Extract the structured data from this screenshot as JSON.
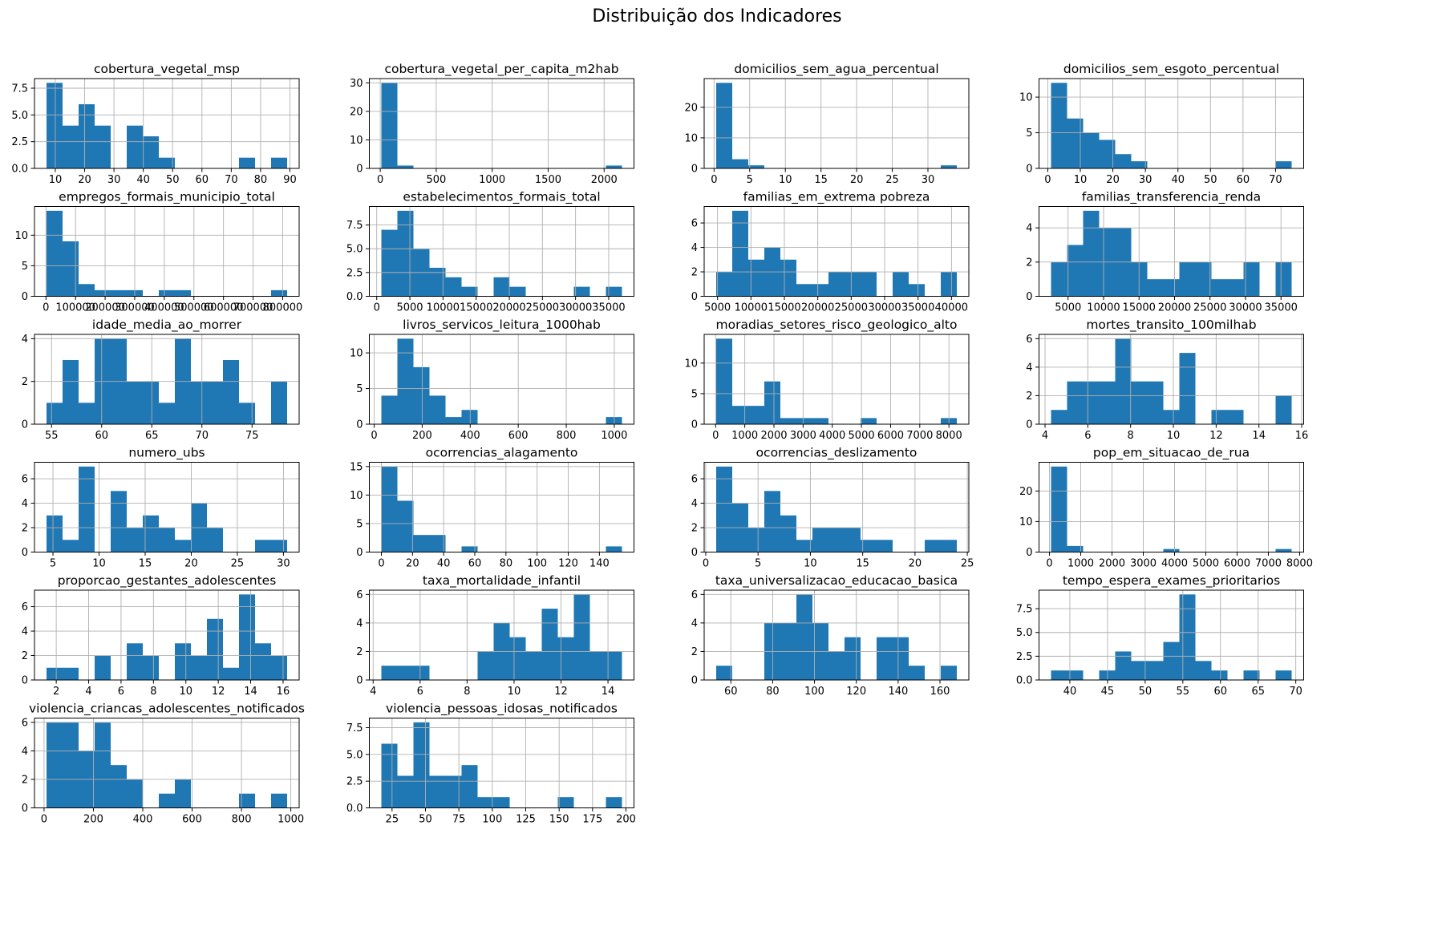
{
  "suptitle": "Distribuição dos Indicadores",
  "colors": {
    "bar": "#1f77b4",
    "grid": "#b0b0b0",
    "spine": "#000000",
    "text": "#000000"
  },
  "chart_data": [
    {
      "type": "bar",
      "title": "cobertura_vegetal_msp",
      "bin_start": 7,
      "bin_width": 5.47,
      "counts": [
        8,
        4,
        6,
        4,
        0,
        4,
        3,
        1,
        0,
        0,
        0,
        0,
        1,
        0,
        1
      ],
      "xticks": [
        10,
        20,
        30,
        40,
        50,
        60,
        70,
        80,
        90
      ],
      "xtick_labels": [
        "10",
        "20",
        "30",
        "40",
        "50",
        "60",
        "70",
        "80",
        "90"
      ],
      "yticks": [
        0,
        2.5,
        5,
        7.5
      ],
      "ytick_labels": [
        "0.0",
        "2.5",
        "5.0",
        "7.5"
      ],
      "ylim": 8.4
    },
    {
      "type": "bar",
      "title": "cobertura_vegetal_per_capita_m2hab",
      "bin_start": 10,
      "bin_width": 143.3,
      "counts": [
        30,
        1,
        0,
        0,
        0,
        0,
        0,
        0,
        0,
        0,
        0,
        0,
        0,
        0,
        1
      ],
      "xticks": [
        0,
        500,
        1000,
        1500,
        2000
      ],
      "xtick_labels": [
        "0",
        "500",
        "1000",
        "1500",
        "2000"
      ],
      "yticks": [
        0,
        10,
        20,
        30
      ],
      "ytick_labels": [
        "0",
        "10",
        "20",
        "30"
      ],
      "ylim": 31.5
    },
    {
      "type": "bar",
      "title": "domicilios_sem_agua_percentual",
      "bin_start": 0.3,
      "bin_width": 2.25,
      "counts": [
        28,
        3,
        1,
        0,
        0,
        0,
        0,
        0,
        0,
        0,
        0,
        0,
        0,
        0,
        1
      ],
      "xticks": [
        0,
        5,
        10,
        15,
        20,
        25,
        30
      ],
      "xtick_labels": [
        "0",
        "5",
        "10",
        "15",
        "20",
        "25",
        "30"
      ],
      "yticks": [
        0,
        10,
        20
      ],
      "ytick_labels": [
        "0",
        "10",
        "20"
      ],
      "ylim": 29.4
    },
    {
      "type": "bar",
      "title": "domicilios_sem_esgoto_percentual",
      "bin_start": 1.0,
      "bin_width": 4.93,
      "counts": [
        12,
        7,
        5,
        4,
        2,
        1,
        0,
        0,
        0,
        0,
        0,
        0,
        0,
        0,
        1
      ],
      "xticks": [
        0,
        10,
        20,
        30,
        40,
        50,
        60,
        70
      ],
      "xtick_labels": [
        "0",
        "10",
        "20",
        "30",
        "40",
        "50",
        "60",
        "70"
      ],
      "yticks": [
        0,
        5,
        10
      ],
      "ytick_labels": [
        "0",
        "5",
        "10"
      ],
      "ylim": 12.6
    },
    {
      "type": "bar",
      "title": "empregos_formais_municipio_total",
      "bin_start": 2000,
      "bin_width": 54200,
      "counts": [
        14,
        9,
        2,
        1,
        1,
        1,
        0,
        1,
        1,
        0,
        0,
        0,
        0,
        0,
        1
      ],
      "xticks": [
        0,
        100000,
        200000,
        300000,
        400000,
        500000,
        600000,
        700000,
        800000
      ],
      "xtick_labels": [
        "0",
        "100000",
        "200000",
        "300000",
        "400000",
        "500000",
        "600000",
        "700000",
        "800000"
      ],
      "yticks": [
        0,
        5,
        10
      ],
      "ytick_labels": [
        "0",
        "5",
        "10"
      ],
      "ylim": 14.7
    },
    {
      "type": "bar",
      "title": "estabelecimentos_formais_total",
      "bin_start": 700,
      "bin_width": 2420,
      "counts": [
        7,
        9,
        5,
        3,
        2,
        1,
        0,
        2,
        1,
        0,
        0,
        0,
        1,
        0,
        1
      ],
      "xticks": [
        0,
        5000,
        10000,
        15000,
        20000,
        25000,
        30000,
        35000
      ],
      "xtick_labels": [
        "0",
        "5000",
        "10000",
        "15000",
        "20000",
        "25000",
        "30000",
        "35000"
      ],
      "yticks": [
        0,
        2.5,
        5,
        7.5
      ],
      "ytick_labels": [
        "0.0",
        "2.5",
        "5.0",
        "7.5"
      ],
      "ylim": 9.45
    },
    {
      "type": "bar",
      "title": "familias_em_extrema pobreza",
      "bin_start": 4800,
      "bin_width": 2400,
      "counts": [
        2,
        7,
        3,
        4,
        3,
        1,
        1,
        2,
        2,
        2,
        0,
        2,
        1,
        0,
        2
      ],
      "xticks": [
        5000,
        10000,
        15000,
        20000,
        25000,
        30000,
        35000,
        40000
      ],
      "xtick_labels": [
        "5000",
        "10000",
        "15000",
        "20000",
        "25000",
        "30000",
        "35000",
        "40000"
      ],
      "yticks": [
        0,
        2,
        4,
        6
      ],
      "ytick_labels": [
        "0",
        "2",
        "4",
        "6"
      ],
      "ylim": 7.35
    },
    {
      "type": "bar",
      "title": "familias_transferencia_renda",
      "bin_start": 2600,
      "bin_width": 2260,
      "counts": [
        2,
        3,
        5,
        4,
        4,
        2,
        1,
        1,
        2,
        2,
        1,
        1,
        2,
        0,
        2
      ],
      "xticks": [
        5000,
        10000,
        15000,
        20000,
        25000,
        30000,
        35000
      ],
      "xtick_labels": [
        "5000",
        "10000",
        "15000",
        "20000",
        "25000",
        "30000",
        "35000"
      ],
      "yticks": [
        0,
        2,
        4
      ],
      "ytick_labels": [
        "0",
        "2",
        "4"
      ],
      "ylim": 5.25
    },
    {
      "type": "bar",
      "title": "idade_media_ao_morrer",
      "bin_start": 54.5,
      "bin_width": 1.6,
      "counts": [
        1,
        3,
        1,
        4,
        4,
        2,
        2,
        1,
        4,
        2,
        2,
        3,
        1,
        0,
        2
      ],
      "xticks": [
        55,
        60,
        65,
        70,
        75
      ],
      "xtick_labels": [
        "55",
        "60",
        "65",
        "70",
        "75"
      ],
      "yticks": [
        0,
        2,
        4
      ],
      "ytick_labels": [
        "0",
        "2",
        "4"
      ],
      "ylim": 4.2
    },
    {
      "type": "bar",
      "title": "livros_servicos_leitura_1000hab",
      "bin_start": 30,
      "bin_width": 66.8,
      "counts": [
        4,
        12,
        8,
        4,
        1,
        2,
        0,
        0,
        0,
        0,
        0,
        0,
        0,
        0,
        1
      ],
      "xticks": [
        0,
        200,
        400,
        600,
        800,
        1000
      ],
      "xtick_labels": [
        "0",
        "200",
        "400",
        "600",
        "800",
        "1000"
      ],
      "yticks": [
        0,
        5,
        10
      ],
      "ytick_labels": [
        "0",
        "5",
        "10"
      ],
      "ylim": 12.6
    },
    {
      "type": "bar",
      "title": "moradias_setores_risco_geologico_alto",
      "bin_start": 20,
      "bin_width": 550,
      "counts": [
        14,
        3,
        3,
        7,
        1,
        1,
        1,
        0,
        0,
        1,
        0,
        0,
        0,
        0,
        1
      ],
      "xticks": [
        0,
        1000,
        2000,
        3000,
        4000,
        5000,
        6000,
        7000,
        8000
      ],
      "xtick_labels": [
        "0",
        "1000",
        "2000",
        "3000",
        "4000",
        "5000",
        "6000",
        "7000",
        "8000"
      ],
      "yticks": [
        0,
        5,
        10
      ],
      "ytick_labels": [
        "0",
        "5",
        "10"
      ],
      "ylim": 14.7
    },
    {
      "type": "bar",
      "title": "mortes_transito_100milhab",
      "bin_start": 4.28,
      "bin_width": 0.75,
      "counts": [
        1,
        3,
        3,
        3,
        6,
        3,
        3,
        1,
        5,
        0,
        1,
        1,
        0,
        0,
        2
      ],
      "xticks": [
        4,
        6,
        8,
        10,
        12,
        14,
        16
      ],
      "xtick_labels": [
        "4",
        "6",
        "8",
        "10",
        "12",
        "14",
        "16"
      ],
      "yticks": [
        0,
        2,
        4,
        6
      ],
      "ytick_labels": [
        "0",
        "2",
        "4",
        "6"
      ],
      "ylim": 6.3
    },
    {
      "type": "bar",
      "title": "numero_ubs",
      "bin_start": 4.3,
      "bin_width": 1.74,
      "counts": [
        3,
        1,
        7,
        0,
        5,
        2,
        3,
        2,
        1,
        4,
        2,
        0,
        0,
        1,
        1
      ],
      "xticks": [
        5,
        10,
        15,
        20,
        25,
        30
      ],
      "xtick_labels": [
        "5",
        "10",
        "15",
        "20",
        "25",
        "30"
      ],
      "yticks": [
        0,
        2,
        4,
        6
      ],
      "ytick_labels": [
        "0",
        "2",
        "4",
        "6"
      ],
      "ylim": 7.35
    },
    {
      "type": "bar",
      "title": "ocorrencias_alagamento",
      "bin_start": 0,
      "bin_width": 10.3,
      "counts": [
        15,
        9,
        3,
        3,
        0,
        1,
        0,
        0,
        0,
        0,
        0,
        0,
        0,
        0,
        1
      ],
      "xticks": [
        0,
        20,
        40,
        60,
        80,
        100,
        120,
        140
      ],
      "xtick_labels": [
        "0",
        "20",
        "40",
        "60",
        "80",
        "100",
        "120",
        "140"
      ],
      "yticks": [
        0,
        5,
        10,
        15
      ],
      "ytick_labels": [
        "0",
        "5",
        "10",
        "15"
      ],
      "ylim": 15.75
    },
    {
      "type": "bar",
      "title": "ocorrencias_deslizamento",
      "bin_start": 1.0,
      "bin_width": 1.533,
      "counts": [
        7,
        4,
        2,
        5,
        3,
        1,
        2,
        2,
        2,
        1,
        1,
        0,
        0,
        1,
        1
      ],
      "xticks": [
        0,
        5,
        10,
        15,
        20,
        25
      ],
      "xtick_labels": [
        "0",
        "5",
        "10",
        "15",
        "20",
        "25"
      ],
      "yticks": [
        0,
        2,
        4,
        6
      ],
      "ytick_labels": [
        "0",
        "2",
        "4",
        "6"
      ],
      "ylim": 7.35
    },
    {
      "type": "bar",
      "title": "pop_em_situacao_de_rua",
      "bin_start": 50,
      "bin_width": 513,
      "counts": [
        28,
        2,
        0,
        0,
        0,
        0,
        0,
        1,
        0,
        0,
        0,
        0,
        0,
        0,
        1
      ],
      "xticks": [
        0,
        1000,
        2000,
        3000,
        4000,
        5000,
        6000,
        7000,
        8000
      ],
      "xtick_labels": [
        "0",
        "1000",
        "2000",
        "3000",
        "4000",
        "5000",
        "6000",
        "7000",
        "8000"
      ],
      "yticks": [
        0,
        10,
        20
      ],
      "ytick_labels": [
        "0",
        "10",
        "20"
      ],
      "ylim": 29.4
    },
    {
      "type": "bar",
      "title": "proporcao_gestantes_adolescentes",
      "bin_start": 1.4,
      "bin_width": 0.99,
      "counts": [
        1,
        1,
        0,
        2,
        0,
        3,
        2,
        0,
        3,
        2,
        5,
        1,
        7,
        3,
        2
      ],
      "xticks": [
        2,
        4,
        6,
        8,
        10,
        12,
        14,
        16
      ],
      "xtick_labels": [
        "2",
        "4",
        "6",
        "8",
        "10",
        "12",
        "14",
        "16"
      ],
      "yticks": [
        0,
        2,
        4,
        6
      ],
      "ytick_labels": [
        "0",
        "2",
        "4",
        "6"
      ],
      "ylim": 7.35
    },
    {
      "type": "bar",
      "title": "taxa_mortalidade_infantil",
      "bin_start": 4.35,
      "bin_width": 0.683,
      "counts": [
        1,
        1,
        1,
        0,
        0,
        0,
        2,
        4,
        3,
        2,
        5,
        3,
        6,
        2,
        2
      ],
      "xticks": [
        4,
        6,
        8,
        10,
        12,
        14
      ],
      "xtick_labels": [
        "4",
        "6",
        "8",
        "10",
        "12",
        "14"
      ],
      "yticks": [
        0,
        2,
        4,
        6
      ],
      "ytick_labels": [
        "0",
        "2",
        "4",
        "6"
      ],
      "ylim": 6.3
    },
    {
      "type": "bar",
      "title": "taxa_universalizacao_educacao_basica",
      "bin_start": 53,
      "bin_width": 7.67,
      "counts": [
        1,
        0,
        0,
        4,
        4,
        6,
        4,
        2,
        3,
        0,
        3,
        3,
        1,
        0,
        1
      ],
      "xticks": [
        60,
        80,
        100,
        120,
        140,
        160
      ],
      "xtick_labels": [
        "60",
        "80",
        "100",
        "120",
        "140",
        "160"
      ],
      "yticks": [
        0,
        2,
        4,
        6
      ],
      "ytick_labels": [
        "0",
        "2",
        "4",
        "6"
      ],
      "ylim": 6.3
    },
    {
      "type": "bar",
      "title": "tempo_espera_exames_prioritarios",
      "bin_start": 37.5,
      "bin_width": 2.13,
      "counts": [
        1,
        1,
        0,
        1,
        3,
        2,
        2,
        4,
        9,
        2,
        1,
        0,
        1,
        0,
        1
      ],
      "xticks": [
        40,
        45,
        50,
        55,
        60,
        65,
        70
      ],
      "xtick_labels": [
        "40",
        "45",
        "50",
        "55",
        "60",
        "65",
        "70"
      ],
      "yticks": [
        0,
        2.5,
        5,
        7.5
      ],
      "ytick_labels": [
        "0.0",
        "2.5",
        "5.0",
        "7.5"
      ],
      "ylim": 9.45
    },
    {
      "type": "bar",
      "title": "violencia_criancas_adolescentes_notificados",
      "bin_start": 10,
      "bin_width": 65,
      "counts": [
        6,
        6,
        4,
        6,
        3,
        2,
        0,
        1,
        2,
        0,
        0,
        0,
        1,
        0,
        1
      ],
      "xticks": [
        0,
        200,
        400,
        600,
        800,
        1000
      ],
      "xtick_labels": [
        "0",
        "200",
        "400",
        "600",
        "800",
        "1000"
      ],
      "yticks": [
        0,
        2,
        4,
        6
      ],
      "ytick_labels": [
        "0",
        "2",
        "4",
        "6"
      ],
      "ylim": 6.3
    },
    {
      "type": "bar",
      "title": "violencia_pessoas_idosas_notificados",
      "bin_start": 17,
      "bin_width": 12,
      "counts": [
        6,
        3,
        8,
        3,
        3,
        4,
        1,
        1,
        0,
        0,
        0,
        1,
        0,
        0,
        1
      ],
      "xticks": [
        25,
        50,
        75,
        100,
        125,
        150,
        175,
        200
      ],
      "xtick_labels": [
        "25",
        "50",
        "75",
        "100",
        "125",
        "150",
        "175",
        "200"
      ],
      "yticks": [
        0,
        2.5,
        5,
        7.5
      ],
      "ytick_labels": [
        "0.0",
        "2.5",
        "5.0",
        "7.5"
      ],
      "ylim": 8.4
    }
  ]
}
